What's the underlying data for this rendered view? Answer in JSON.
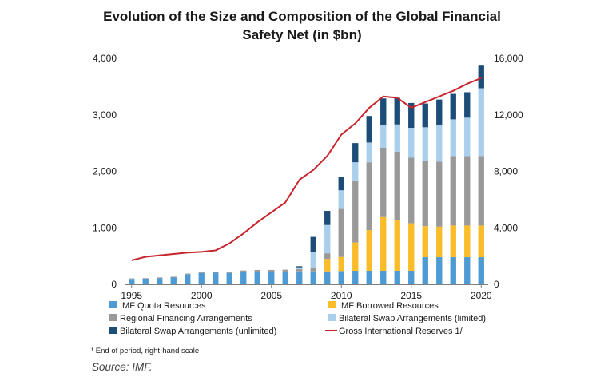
{
  "chart_data": {
    "type": "bar",
    "title_line1": "Evolution of the Size and Composition of the Global Financial",
    "title_line2": "Safety Net (in $bn)",
    "x": [
      1995,
      1996,
      1997,
      1998,
      1999,
      2000,
      2001,
      2002,
      2003,
      2004,
      2005,
      2006,
      2007,
      2008,
      2009,
      2010,
      2011,
      2012,
      2013,
      2014,
      2015,
      2016,
      2017,
      2018,
      2019,
      2020
    ],
    "x_tick_labels": [
      "1995",
      "2000",
      "2005",
      "2010",
      "2015",
      "2020"
    ],
    "left_axis": {
      "ylim": [
        0,
        4000
      ],
      "ticks": [
        "0",
        "1,000",
        "2,000",
        "3,000",
        "4,000"
      ]
    },
    "right_axis": {
      "ylim": [
        0,
        16000
      ],
      "ticks": [
        "0",
        "4,000",
        "8,000",
        "12,000",
        "16,000"
      ]
    },
    "series": [
      {
        "name": "IMF Quota Resources",
        "color": "#4e9ad4",
        "values": [
          95,
          100,
          110,
          120,
          175,
          200,
          205,
          200,
          220,
          225,
          225,
          225,
          230,
          230,
          230,
          235,
          240,
          240,
          240,
          240,
          240,
          480,
          480,
          480,
          480,
          480
        ]
      },
      {
        "name": "IMF Borrowed Resources",
        "color": "#fbbc2a",
        "values": [
          0,
          0,
          0,
          0,
          0,
          0,
          0,
          0,
          0,
          0,
          0,
          0,
          0,
          0,
          220,
          250,
          500,
          720,
          950,
          890,
          840,
          550,
          540,
          560,
          560,
          560
        ]
      },
      {
        "name": "Regional Financing Arrangements",
        "color": "#999999",
        "values": [
          10,
          10,
          12,
          15,
          15,
          15,
          20,
          20,
          25,
          30,
          30,
          35,
          40,
          70,
          100,
          850,
          1100,
          1200,
          1230,
          1220,
          1160,
          1150,
          1150,
          1230,
          1230,
          1230
        ]
      },
      {
        "name": "Bilateral Swap Arrangements (limited)",
        "color": "#a9cfed",
        "values": [
          0,
          0,
          0,
          0,
          0,
          0,
          0,
          0,
          0,
          0,
          0,
          0,
          30,
          270,
          500,
          330,
          320,
          350,
          400,
          480,
          530,
          600,
          650,
          650,
          680,
          1200
        ]
      },
      {
        "name": "Bilateral Swap Arrangements (unlimited)",
        "color": "#1c4d78",
        "values": [
          0,
          0,
          0,
          0,
          0,
          0,
          0,
          0,
          0,
          0,
          0,
          0,
          20,
          270,
          250,
          240,
          340,
          470,
          470,
          470,
          440,
          420,
          450,
          450,
          450,
          400
        ]
      }
    ],
    "line_series": {
      "name": "Gross International Reserves 1/",
      "color": "#c8242b",
      "axis": "right",
      "values": [
        1700,
        1950,
        2050,
        2150,
        2250,
        2300,
        2400,
        2900,
        3600,
        4400,
        5100,
        5800,
        7400,
        8100,
        9100,
        10600,
        11400,
        12500,
        13300,
        13200,
        12500,
        12900,
        13300,
        13700,
        14200,
        14600
      ]
    },
    "legend": [
      {
        "label": "IMF Quota Resources",
        "kind": "box",
        "color": "#4e9ad4"
      },
      {
        "label": "IMF Borrowed Resources",
        "kind": "box",
        "color": "#fbbc2a"
      },
      {
        "label": "Regional Financing Arrangements",
        "kind": "box",
        "color": "#999999"
      },
      {
        "label": "Bilateral Swap Arrangements (limited)",
        "kind": "box",
        "color": "#a9cfed"
      },
      {
        "label": "Bilateral Swap Arrangements (unlimited)",
        "kind": "box",
        "color": "#1c4d78"
      },
      {
        "label": "Gross International Reserves 1/",
        "kind": "line",
        "color": "#c8242b"
      }
    ],
    "footnote": "¹ End of period, right-hand scale",
    "source": "Source: IMF."
  }
}
